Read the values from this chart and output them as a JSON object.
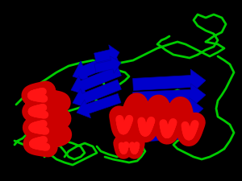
{
  "background_color": "#000000",
  "beta_color": "#0000cc",
  "helix_color": "#cc0000",
  "loop_color": "#00cc00",
  "figsize": [
    3.0,
    2.25
  ],
  "dpi": 100
}
